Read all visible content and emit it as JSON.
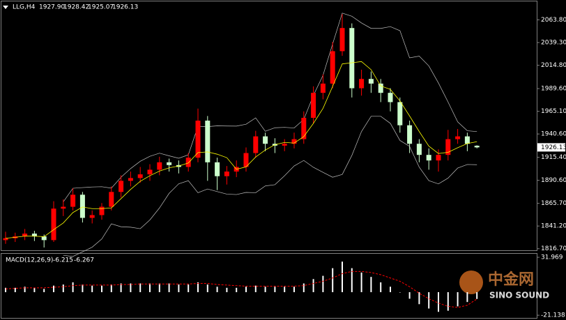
{
  "header": {
    "symbol": "LLG,H4",
    "ohlc_text": [
      "1927.90",
      "1928.42",
      "1925.07",
      "1926.13"
    ]
  },
  "watermark": {
    "name": "中金网",
    "brand": "SINO SOUND"
  },
  "chart_data": [
    {
      "type": "candlestick",
      "open": [
        1826,
        1828,
        1830,
        1833,
        1830,
        1826,
        1860,
        1862,
        1875,
        1850,
        1853,
        1862,
        1878,
        1890,
        1893,
        1897,
        1902,
        1910,
        1907,
        1905,
        1915,
        1955,
        1910,
        1895,
        1900,
        1905,
        1920,
        1938,
        1930,
        1928,
        1930,
        1935,
        1958,
        1985,
        1995,
        2030,
        2055,
        1990,
        2000,
        1995,
        1985,
        1975,
        1950,
        1930,
        1918,
        1912,
        1918,
        1935,
        1938,
        1927.9
      ],
      "high": [
        1835,
        1834,
        1838,
        1836,
        1832,
        1868,
        1870,
        1882,
        1878,
        1858,
        1866,
        1884,
        1896,
        1900,
        1905,
        1908,
        1916,
        1914,
        1912,
        1920,
        1968,
        1960,
        1915,
        1906,
        1912,
        1926,
        1944,
        1942,
        1936,
        1935,
        1942,
        1965,
        1992,
        2005,
        2040,
        2070,
        2060,
        2010,
        2008,
        2000,
        1990,
        1980,
        1955,
        1935,
        1925,
        1924,
        1945,
        1946,
        1942,
        1928.42
      ],
      "low": [
        1822,
        1824,
        1826,
        1825,
        1818,
        1824,
        1852,
        1858,
        1845,
        1844,
        1848,
        1858,
        1872,
        1884,
        1888,
        1890,
        1896,
        1900,
        1898,
        1900,
        1910,
        1890,
        1880,
        1886,
        1894,
        1900,
        1915,
        1922,
        1920,
        1922,
        1925,
        1930,
        1952,
        1978,
        1990,
        2025,
        1980,
        1982,
        1985,
        1975,
        1965,
        1942,
        1920,
        1910,
        1902,
        1900,
        1912,
        1930,
        1922,
        1925.07
      ],
      "close": [
        1828,
        1830,
        1833,
        1830,
        1826,
        1860,
        1862,
        1875,
        1850,
        1853,
        1862,
        1878,
        1890,
        1893,
        1897,
        1902,
        1910,
        1907,
        1905,
        1915,
        1955,
        1910,
        1895,
        1900,
        1905,
        1920,
        1938,
        1930,
        1928,
        1930,
        1935,
        1958,
        1985,
        1995,
        2030,
        2055,
        1990,
        2000,
        1995,
        1985,
        1975,
        1950,
        1930,
        1918,
        1912,
        1918,
        1935,
        1938,
        1930,
        1926.13
      ],
      "up_color": "#ff0000",
      "down_color": "#ccffcc",
      "ylim": [
        1815,
        2083
      ],
      "yticks": [
        {
          "value": 2063.8,
          "label": "2063.80"
        },
        {
          "value": 2039.3,
          "label": "2039.30"
        },
        {
          "value": 2014.8,
          "label": "2014.80"
        },
        {
          "value": 1989.6,
          "label": "1989.60"
        },
        {
          "value": 1965.1,
          "label": "1965.10"
        },
        {
          "value": 1940.6,
          "label": "1940.60"
        },
        {
          "value": 1915.4,
          "label": "1915.40"
        },
        {
          "value": 1890.6,
          "label": "1890.60"
        },
        {
          "value": 1865.7,
          "label": "1865.70"
        },
        {
          "value": 1841.2,
          "label": "1841.20"
        },
        {
          "value": 1816.7,
          "label": "1816.70"
        }
      ]
    },
    {
      "type": "macd",
      "title": "MACD(12,26,9)",
      "value_texts": [
        "-6.215",
        "-6.267"
      ],
      "series": [
        {
          "name": "histogram",
          "color": "#ffffff",
          "values": [
            4,
            4,
            5,
            4,
            3,
            6,
            7,
            9,
            7,
            6,
            6,
            7,
            8,
            8,
            8,
            8,
            8,
            8,
            7,
            7,
            9,
            7,
            5,
            4,
            4,
            5,
            6,
            5,
            5,
            5,
            5,
            8,
            12,
            15,
            22,
            28,
            22,
            18,
            14,
            9,
            5,
            0,
            -6,
            -11,
            -15,
            -18,
            -17,
            -13,
            -9,
            -6.215
          ]
        },
        {
          "name": "signal",
          "color": "#ff0000",
          "values": [
            3,
            3.5,
            4,
            4,
            4,
            4.5,
            5,
            6,
            6.5,
            6.5,
            6.5,
            6.5,
            7,
            7,
            7.5,
            7.5,
            7.5,
            7.5,
            7.5,
            7.5,
            8,
            8,
            7,
            6.5,
            6,
            5.5,
            5.5,
            5.5,
            5.5,
            5.5,
            5.5,
            6,
            8,
            10,
            13,
            17,
            19,
            19,
            18,
            16,
            13,
            10,
            5,
            -1,
            -6,
            -10,
            -13,
            -14,
            -12,
            -6.267
          ]
        }
      ],
      "ylim": [
        -23.6,
        35.2
      ],
      "yticks": [
        31.969,
        -21.138
      ]
    }
  ]
}
